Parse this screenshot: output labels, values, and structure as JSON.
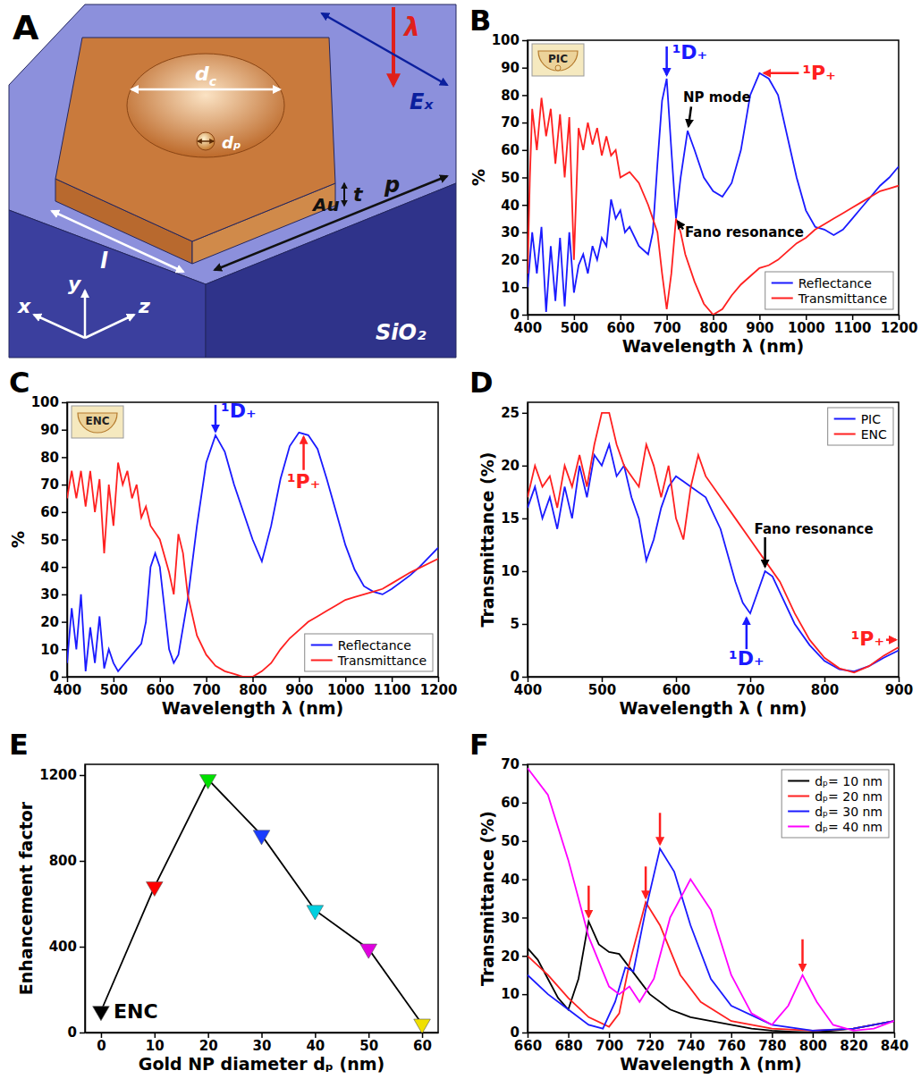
{
  "diagram": {
    "letter": "A",
    "labels": [
      {
        "text": "λ"
      },
      {
        "text": "Eₓ"
      },
      {
        "text": "d",
        "sub": "c"
      },
      {
        "text": "dₚ"
      },
      {
        "text": "Au"
      },
      {
        "text": "l"
      },
      {
        "text": "t"
      },
      {
        "text": "p"
      },
      {
        "text": "x"
      },
      {
        "text": "y"
      },
      {
        "text": "z"
      },
      {
        "text": "SiO₂"
      }
    ]
  },
  "chart_data": [
    {
      "type": "line",
      "title": "B",
      "x_label": "Wavelength λ (nm)",
      "y_label": "%",
      "inset_label": "PIC",
      "xlim": [
        400,
        1200
      ],
      "xticks": [
        400,
        500,
        600,
        700,
        800,
        900,
        1000,
        1100,
        1200
      ],
      "ylim": [
        0,
        100
      ],
      "yticks": [
        0,
        10,
        20,
        30,
        40,
        50,
        60,
        70,
        80,
        90,
        100
      ],
      "legend": "lower right",
      "series": [
        {
          "name": "Reflectance",
          "color": "#1a1aff",
          "x": [
            400,
            410,
            420,
            430,
            440,
            450,
            460,
            470,
            480,
            490,
            500,
            510,
            520,
            530,
            540,
            550,
            560,
            570,
            580,
            590,
            600,
            610,
            620,
            640,
            660,
            670,
            680,
            690,
            700,
            710,
            720,
            730,
            745,
            760,
            780,
            800,
            820,
            840,
            860,
            880,
            900,
            920,
            940,
            960,
            980,
            1000,
            1020,
            1040,
            1060,
            1080,
            1100,
            1120,
            1140,
            1160,
            1180,
            1200
          ],
          "values": [
            10,
            30,
            15,
            32,
            1,
            25,
            5,
            28,
            3,
            30,
            8,
            18,
            22,
            15,
            25,
            20,
            28,
            25,
            42,
            35,
            38,
            30,
            32,
            25,
            22,
            30,
            55,
            78,
            86,
            60,
            35,
            50,
            67,
            60,
            50,
            45,
            43,
            48,
            60,
            80,
            88,
            86,
            80,
            65,
            50,
            38,
            32,
            31,
            29,
            31,
            35,
            39,
            43,
            47,
            50,
            54
          ]
        },
        {
          "name": "Transmittance",
          "color": "#ff2020",
          "x": [
            400,
            405,
            410,
            420,
            430,
            440,
            450,
            460,
            470,
            480,
            490,
            500,
            510,
            520,
            530,
            540,
            550,
            560,
            570,
            580,
            590,
            600,
            620,
            640,
            660,
            680,
            690,
            700,
            710,
            720,
            730,
            740,
            760,
            780,
            800,
            820,
            840,
            860,
            880,
            900,
            920,
            940,
            960,
            980,
            1000,
            1020,
            1040,
            1060,
            1080,
            1100,
            1120,
            1140,
            1160,
            1180,
            1200
          ],
          "values": [
            15,
            50,
            75,
            60,
            79,
            65,
            75,
            55,
            73,
            50,
            72,
            20,
            68,
            60,
            70,
            62,
            68,
            58,
            65,
            58,
            60,
            50,
            52,
            48,
            40,
            30,
            15,
            2,
            15,
            35,
            30,
            22,
            12,
            4,
            0,
            2,
            7,
            11,
            14,
            17,
            18,
            20,
            23,
            26,
            28,
            31,
            33,
            35,
            37,
            39,
            41,
            43,
            45,
            46,
            47
          ]
        }
      ],
      "annotations": [
        {
          "text": "¹D₊",
          "x": 700,
          "y": 86,
          "color": "#1a1aff"
        },
        {
          "text": "¹P₊",
          "x": 900,
          "y": 88,
          "color": "#ff2020"
        },
        {
          "text": "NP mode",
          "x": 745,
          "y": 67,
          "color": "#000000"
        },
        {
          "text": "Fano resonance",
          "x": 720,
          "y": 35,
          "color": "#000000"
        }
      ]
    },
    {
      "type": "line",
      "title": "C",
      "x_label": "Wavelength λ (nm)",
      "y_label": "%",
      "inset_label": "ENC",
      "xlim": [
        400,
        1200
      ],
      "xticks": [
        400,
        500,
        600,
        700,
        800,
        900,
        1000,
        1100,
        1200
      ],
      "ylim": [
        0,
        100
      ],
      "yticks": [
        0,
        10,
        20,
        30,
        40,
        50,
        60,
        70,
        80,
        90,
        100
      ],
      "legend": "lower right",
      "series": [
        {
          "name": "Reflectance",
          "color": "#1a1aff",
          "x": [
            400,
            410,
            420,
            430,
            440,
            450,
            460,
            470,
            480,
            490,
            500,
            510,
            520,
            540,
            560,
            570,
            580,
            590,
            600,
            610,
            620,
            630,
            640,
            660,
            680,
            700,
            720,
            740,
            760,
            780,
            800,
            820,
            840,
            860,
            880,
            900,
            920,
            940,
            960,
            980,
            1000,
            1020,
            1040,
            1060,
            1080,
            1100,
            1140,
            1160,
            1200
          ],
          "values": [
            5,
            25,
            10,
            30,
            2,
            18,
            5,
            22,
            3,
            10,
            5,
            2,
            4,
            8,
            12,
            20,
            40,
            45,
            40,
            25,
            10,
            5,
            8,
            28,
            55,
            78,
            88,
            82,
            70,
            60,
            50,
            42,
            55,
            72,
            84,
            89,
            88,
            83,
            72,
            60,
            48,
            39,
            33,
            31,
            30,
            32,
            37,
            40,
            47
          ]
        },
        {
          "name": "Transmittance",
          "color": "#ff2020",
          "x": [
            400,
            410,
            420,
            430,
            440,
            450,
            460,
            470,
            480,
            490,
            500,
            510,
            520,
            530,
            540,
            550,
            560,
            570,
            580,
            600,
            620,
            630,
            640,
            650,
            660,
            680,
            700,
            720,
            740,
            760,
            780,
            800,
            820,
            840,
            860,
            880,
            900,
            920,
            940,
            960,
            980,
            1000,
            1020,
            1040,
            1060,
            1080,
            1100,
            1140,
            1200
          ],
          "values": [
            65,
            75,
            65,
            75,
            62,
            75,
            60,
            72,
            45,
            70,
            55,
            78,
            70,
            75,
            65,
            70,
            58,
            62,
            55,
            50,
            38,
            30,
            52,
            45,
            30,
            15,
            8,
            4,
            2,
            1,
            0,
            0,
            2,
            5,
            10,
            14,
            17,
            20,
            22,
            24,
            26,
            28,
            29,
            30,
            31,
            32,
            34,
            38,
            43
          ]
        }
      ],
      "annotations": [
        {
          "text": "¹D₊",
          "x": 720,
          "y": 88,
          "color": "#1a1aff"
        },
        {
          "text": "¹P₊",
          "x": 910,
          "y": 89,
          "color": "#ff2020"
        }
      ]
    },
    {
      "type": "line",
      "title": "D",
      "x_label": "Wavelength λ ( nm)",
      "y_label": "Transmittance (%)",
      "xlim": [
        400,
        900
      ],
      "xticks": [
        400,
        500,
        600,
        700,
        800,
        900
      ],
      "ylim": [
        0,
        26
      ],
      "yticks": [
        0,
        5,
        10,
        15,
        20,
        25
      ],
      "legend": "upper right",
      "series": [
        {
          "name": "PIC",
          "color": "#1a1aff",
          "x": [
            400,
            410,
            420,
            430,
            440,
            450,
            460,
            470,
            480,
            490,
            500,
            510,
            520,
            530,
            540,
            550,
            560,
            570,
            580,
            590,
            600,
            620,
            640,
            660,
            680,
            690,
            700,
            710,
            720,
            730,
            740,
            760,
            780,
            800,
            820,
            840,
            860,
            880,
            900
          ],
          "values": [
            16,
            18,
            15,
            17,
            14,
            18,
            15,
            20,
            17,
            21,
            20,
            22,
            19,
            20,
            17,
            15,
            11,
            13,
            16,
            18,
            19,
            18,
            17,
            14,
            9,
            7,
            6,
            8,
            10,
            9.5,
            8,
            5,
            3,
            1.5,
            0.7,
            0.5,
            1,
            1.8,
            2.5
          ]
        },
        {
          "name": "ENC",
          "color": "#ff2020",
          "x": [
            400,
            410,
            420,
            430,
            440,
            450,
            460,
            470,
            480,
            490,
            500,
            510,
            520,
            530,
            540,
            550,
            560,
            570,
            580,
            590,
            600,
            610,
            620,
            630,
            640,
            660,
            680,
            700,
            720,
            740,
            760,
            780,
            800,
            820,
            840,
            860,
            880,
            900
          ],
          "values": [
            17,
            20,
            18,
            19,
            16,
            20,
            18,
            21,
            18,
            22,
            25,
            25,
            22,
            20,
            19,
            18,
            22,
            20,
            17,
            20,
            15,
            13,
            18,
            21,
            19,
            17,
            15,
            13,
            11,
            9,
            6,
            3.5,
            1.8,
            0.8,
            0.4,
            1,
            2,
            2.8
          ]
        }
      ],
      "annotations": [
        {
          "text": "Fano resonance",
          "x": 720,
          "y": 10,
          "color": "#000000"
        },
        {
          "text": "¹D₊",
          "x": 695,
          "y": 6,
          "color": "#1a1aff"
        },
        {
          "text": "¹P₊",
          "x": 900,
          "y": 3.5,
          "color": "#ff2020"
        }
      ]
    },
    {
      "type": "line",
      "title": "E",
      "x_label": "Gold NP diameter dₚ (nm)",
      "y_label": "Enhancement factor",
      "xlim": [
        -3,
        63
      ],
      "xticks": [
        0,
        10,
        20,
        30,
        40,
        50,
        60
      ],
      "ylim": [
        0,
        1250
      ],
      "yticks": [
        0,
        400,
        800,
        1200
      ],
      "marker": "triangle-down",
      "color": "#000000",
      "colors": [
        "#000000",
        "#ff0000",
        "#00e000",
        "#1a3cff",
        "#00d0e0",
        "#e000e0",
        "#f0e000"
      ],
      "x": [
        0,
        10,
        20,
        30,
        40,
        50,
        60
      ],
      "values": [
        100,
        680,
        1180,
        920,
        570,
        390,
        40
      ],
      "annotations": [
        {
          "text": "ENC",
          "x": 0,
          "y": 100,
          "color": "#000000"
        }
      ]
    },
    {
      "type": "line",
      "title": "F",
      "x_label": "Wavelength λ (nm)",
      "y_label": "Transmittance (%)",
      "xlim": [
        660,
        840
      ],
      "xticks": [
        660,
        680,
        700,
        720,
        740,
        760,
        780,
        800,
        820,
        840
      ],
      "ylim": [
        0,
        70
      ],
      "yticks": [
        0,
        10,
        20,
        30,
        40,
        50,
        60,
        70
      ],
      "legend": "upper right",
      "series": [
        {
          "name": "dₚ= 10 nm",
          "color": "#000000",
          "x": [
            660,
            665,
            670,
            675,
            680,
            685,
            690,
            695,
            700,
            705,
            710,
            720,
            730,
            740,
            750,
            760,
            770,
            780,
            790,
            800,
            810,
            820,
            830,
            840
          ],
          "values": [
            22,
            19,
            14,
            9,
            6,
            14,
            29,
            23,
            21,
            20.5,
            17,
            10,
            6,
            4,
            3,
            2,
            1,
            0.5,
            0.2,
            0,
            0.5,
            1,
            2,
            3
          ]
        },
        {
          "name": "dₚ= 20 nm",
          "color": "#ff2020",
          "x": [
            660,
            670,
            680,
            690,
            700,
            705,
            710,
            718,
            725,
            735,
            745,
            760,
            780,
            800,
            820,
            840
          ],
          "values": [
            20,
            15,
            9,
            4,
            1.5,
            5,
            18,
            34,
            28,
            15,
            8,
            3,
            1,
            0.5,
            1,
            3
          ]
        },
        {
          "name": "dₚ= 30 nm",
          "color": "#1a1aff",
          "x": [
            660,
            670,
            680,
            690,
            697,
            703,
            708,
            712,
            718,
            725,
            732,
            740,
            750,
            760,
            780,
            800,
            820,
            840
          ],
          "values": [
            15,
            10,
            6,
            2,
            1,
            8,
            17,
            16,
            32,
            48,
            42,
            28,
            14,
            7,
            2,
            0.5,
            1,
            3
          ]
        },
        {
          "name": "dₚ= 40 nm",
          "color": "#ff00ff",
          "x": [
            660,
            670,
            680,
            690,
            700,
            705,
            710,
            715,
            722,
            730,
            740,
            750,
            760,
            770,
            780,
            788,
            795,
            802,
            810,
            820,
            830,
            840
          ],
          "values": [
            69,
            62,
            45,
            25,
            12,
            10,
            12,
            8,
            14,
            30,
            40,
            32,
            15,
            5,
            2,
            7,
            15,
            8,
            2,
            0.5,
            1,
            3
          ]
        }
      ]
    }
  ]
}
